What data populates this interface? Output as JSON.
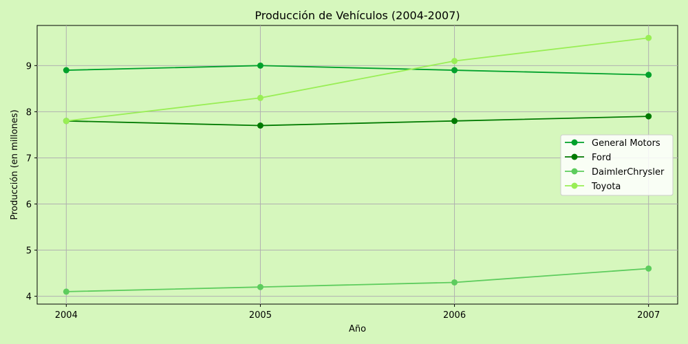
{
  "chart_data": {
    "type": "line",
    "title": "Producción de Vehículos (2004-2007)",
    "xlabel": "Año",
    "ylabel": "Producción (en millones)",
    "x": [
      2004,
      2005,
      2006,
      2007
    ],
    "xlim": [
      2003.85,
      2007.15
    ],
    "ylim": [
      3.83,
      9.87
    ],
    "yticks": [
      4,
      5,
      6,
      7,
      8,
      9
    ],
    "grid": true,
    "legend_position": "center-right",
    "series": [
      {
        "name": "General Motors",
        "color": "#00a12b",
        "values": [
          8.9,
          9.0,
          8.9,
          8.8
        ]
      },
      {
        "name": "Ford",
        "color": "#007a00",
        "values": [
          7.8,
          7.7,
          7.8,
          7.9
        ]
      },
      {
        "name": "DaimlerChrysler",
        "color": "#5dcc5d",
        "values": [
          4.1,
          4.2,
          4.3,
          4.6
        ]
      },
      {
        "name": "Toyota",
        "color": "#99ee55",
        "values": [
          7.8,
          8.3,
          9.1,
          9.6
        ]
      }
    ]
  }
}
